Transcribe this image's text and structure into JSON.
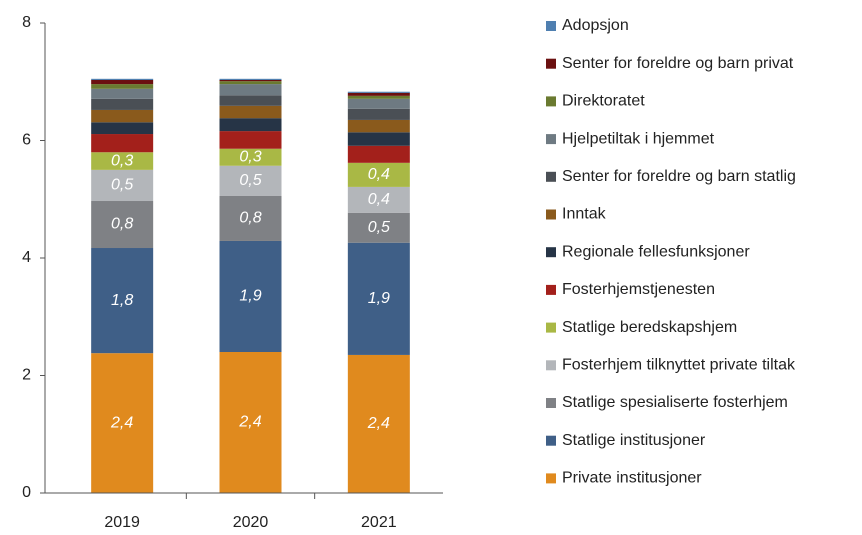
{
  "chart_data": {
    "type": "stacked_bar",
    "categories": [
      "2019",
      "2020",
      "2021"
    ],
    "ylim": [
      0,
      8
    ],
    "yticks": [
      0,
      2,
      4,
      6,
      8
    ],
    "legend": "right",
    "series": [
      {
        "name": "Private institusjoner",
        "color": "#e08a1e",
        "values": [
          2.38,
          2.4,
          2.35
        ],
        "value_labels": [
          "2,4",
          "2,4",
          "2,4"
        ]
      },
      {
        "name": "Statlige institusjoner",
        "color": "#3f5f87",
        "values": [
          1.79,
          1.89,
          1.91
        ],
        "value_labels": [
          "1,8",
          "1,9",
          "1,9"
        ]
      },
      {
        "name": "Statlige spesialiserte fosterhjem",
        "color": "#7f8185",
        "values": [
          0.8,
          0.77,
          0.51
        ],
        "value_labels": [
          "0,8",
          "0,8",
          "0,5"
        ]
      },
      {
        "name": "Fosterhjem tilknyttet private tiltak",
        "color": "#b3b6ba",
        "values": [
          0.53,
          0.51,
          0.44
        ],
        "value_labels": [
          "0,5",
          "0,5",
          "0,4"
        ]
      },
      {
        "name": "Statlige beredskapshjem",
        "color": "#a9b845",
        "values": [
          0.3,
          0.29,
          0.41
        ],
        "value_labels": [
          "0,3",
          "0,3",
          "0,4"
        ]
      },
      {
        "name": "Fosterhjemstjenesten",
        "color": "#a3201b",
        "values": [
          0.31,
          0.3,
          0.29
        ]
      },
      {
        "name": "Regionale fellesfunksjoner",
        "color": "#263446",
        "values": [
          0.2,
          0.22,
          0.23
        ]
      },
      {
        "name": "Inntak",
        "color": "#8a5a1c",
        "values": [
          0.21,
          0.21,
          0.21
        ]
      },
      {
        "name": "Senter for foreldre og barn statlig",
        "color": "#4a4f55",
        "values": [
          0.19,
          0.18,
          0.19
        ]
      },
      {
        "name": "Hjelpetiltak i hjemmet",
        "color": "#6e7a82",
        "values": [
          0.17,
          0.19,
          0.17
        ]
      },
      {
        "name": "Direktoratet",
        "color": "#6a7a30",
        "values": [
          0.08,
          0.05,
          0.05
        ]
      },
      {
        "name": "Senter for foreldre og barn privat",
        "color": "#6b1010",
        "values": [
          0.07,
          0.02,
          0.05
        ]
      },
      {
        "name": "Adopsjon",
        "color": "#4f7fb0",
        "values": [
          0.02,
          0.02,
          0.02
        ]
      }
    ]
  }
}
